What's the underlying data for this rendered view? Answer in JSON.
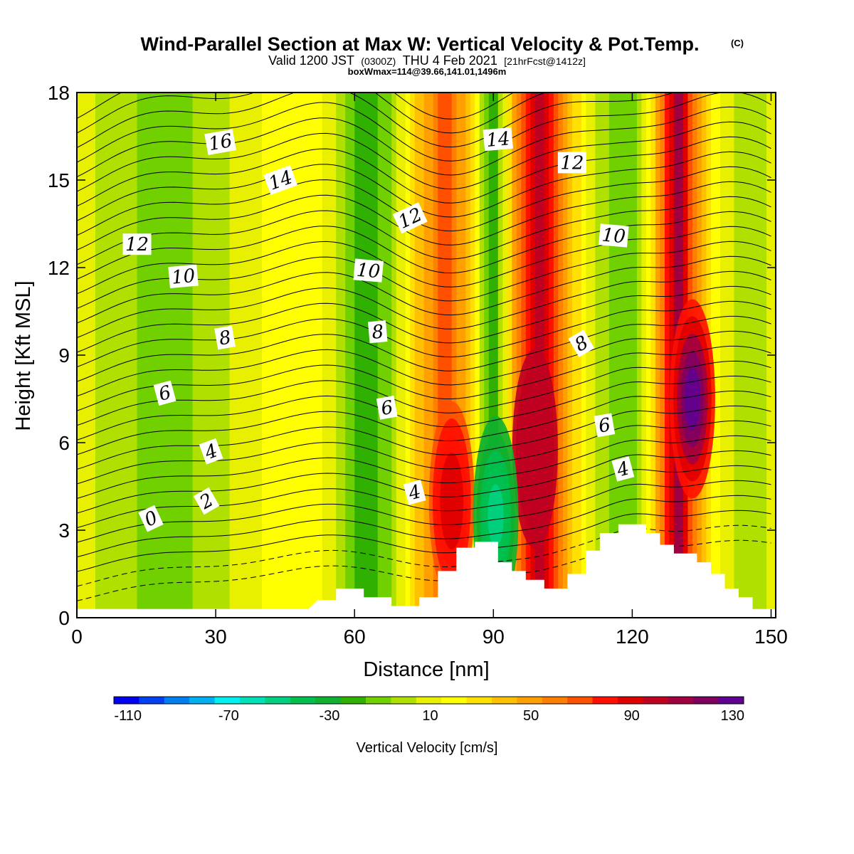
{
  "header": {
    "title": "Wind-Parallel Section at Max W: Vertical Velocity & Pot.Temp.",
    "copyright": "(C)",
    "valid_prefix": "Valid 1200 JST",
    "valid_utc": "(0300Z)",
    "valid_date": "THU 4 Feb 2021",
    "forecast": "[21hrFcst@1412z]",
    "boxwmax": "boxWmax=114@39.66,141.01,1496m"
  },
  "chart_data": {
    "type": "heatmap",
    "xlabel": "Distance [nm]",
    "ylabel": "Height [Kft MSL]",
    "xlim": [
      0,
      151
    ],
    "ylim": [
      0,
      18
    ],
    "x_ticks": [
      "0",
      "30",
      "60",
      "90",
      "120",
      "150"
    ],
    "y_ticks": [
      "0",
      "3",
      "6",
      "9",
      "12",
      "15",
      "18"
    ],
    "x_tick_values": [
      0,
      30,
      60,
      90,
      120,
      150
    ],
    "y_tick_values": [
      0,
      3,
      6,
      9,
      12,
      15,
      18
    ],
    "color_bands": {
      "x": [
        0,
        10,
        20,
        30,
        40,
        50,
        56,
        62,
        68,
        74,
        80,
        86,
        90,
        95,
        100,
        106,
        112,
        118,
        122,
        126,
        130,
        134,
        138,
        144,
        151
      ],
      "values": [
        5,
        -8,
        -15,
        -5,
        10,
        20,
        0,
        -30,
        -10,
        35,
        70,
        20,
        -35,
        50,
        100,
        35,
        0,
        -20,
        -5,
        50,
        110,
        45,
        15,
        -10,
        5
      ]
    },
    "hotspots": [
      {
        "x": 99,
        "y": 5.8,
        "value": 95
      },
      {
        "x": 133,
        "y": 7.5,
        "value": 130
      },
      {
        "x": 81,
        "y": 4.0,
        "value": 85
      },
      {
        "x": 90.5,
        "y": 3.5,
        "value": -55
      }
    ],
    "terrain": [
      [
        0,
        0.3
      ],
      [
        50,
        0.3
      ],
      [
        52,
        0.6
      ],
      [
        56,
        0.6
      ],
      [
        56,
        1.0
      ],
      [
        62,
        1.0
      ],
      [
        62,
        0.7
      ],
      [
        68,
        0.7
      ],
      [
        68,
        0.4
      ],
      [
        74,
        0.4
      ],
      [
        74,
        0.7
      ],
      [
        78,
        0.7
      ],
      [
        78,
        1.6
      ],
      [
        82,
        1.6
      ],
      [
        82,
        2.4
      ],
      [
        86,
        2.4
      ],
      [
        86,
        2.6
      ],
      [
        91,
        2.6
      ],
      [
        91,
        1.9
      ],
      [
        94,
        1.9
      ],
      [
        94,
        1.6
      ],
      [
        97,
        1.6
      ],
      [
        97,
        1.3
      ],
      [
        101,
        1.3
      ],
      [
        101,
        1.0
      ],
      [
        106,
        1.0
      ],
      [
        106,
        1.5
      ],
      [
        110,
        1.5
      ],
      [
        110,
        2.3
      ],
      [
        113,
        2.3
      ],
      [
        113,
        2.9
      ],
      [
        117,
        2.9
      ],
      [
        117,
        3.2
      ],
      [
        123,
        3.2
      ],
      [
        123,
        2.9
      ],
      [
        126,
        2.9
      ],
      [
        126,
        2.5
      ],
      [
        129,
        2.5
      ],
      [
        129,
        2.2
      ],
      [
        134,
        2.2
      ],
      [
        134,
        1.9
      ],
      [
        137,
        1.9
      ],
      [
        137,
        1.5
      ],
      [
        140,
        1.5
      ],
      [
        140,
        1.0
      ],
      [
        143,
        1.0
      ],
      [
        143,
        0.7
      ],
      [
        146,
        0.7
      ],
      [
        146,
        0.3
      ],
      [
        151,
        0.3
      ]
    ],
    "theta_contours": {
      "levels": [
        0,
        2,
        4,
        6,
        8,
        10,
        12,
        14,
        16
      ],
      "labels": [
        {
          "text": "0",
          "x": 16,
          "y": 3.4,
          "rot": -25
        },
        {
          "text": "2",
          "x": 28,
          "y": 4.0,
          "rot": -30
        },
        {
          "text": "4",
          "x": 29,
          "y": 5.7,
          "rot": -20
        },
        {
          "text": "6",
          "x": 19,
          "y": 7.7,
          "rot": -15
        },
        {
          "text": "8",
          "x": 32,
          "y": 9.6,
          "rot": -10
        },
        {
          "text": "10",
          "x": 23,
          "y": 11.7,
          "rot": -5
        },
        {
          "text": "12",
          "x": 13,
          "y": 12.8,
          "rot": 0
        },
        {
          "text": "16",
          "x": 31,
          "y": 16.3,
          "rot": -10
        },
        {
          "text": "14",
          "x": 44,
          "y": 15.0,
          "rot": -20
        },
        {
          "text": "10",
          "x": 63,
          "y": 11.9,
          "rot": 5
        },
        {
          "text": "8",
          "x": 65,
          "y": 9.8,
          "rot": -5
        },
        {
          "text": "6",
          "x": 67,
          "y": 7.2,
          "rot": -10
        },
        {
          "text": "4",
          "x": 73,
          "y": 4.3,
          "rot": -15
        },
        {
          "text": "12",
          "x": 72,
          "y": 13.7,
          "rot": -25
        },
        {
          "text": "14",
          "x": 91,
          "y": 16.4,
          "rot": -5
        },
        {
          "text": "12",
          "x": 107,
          "y": 15.6,
          "rot": 0
        },
        {
          "text": "10",
          "x": 116,
          "y": 13.1,
          "rot": 5
        },
        {
          "text": "8",
          "x": 109,
          "y": 9.4,
          "rot": -30
        },
        {
          "text": "6",
          "x": 114,
          "y": 6.6,
          "rot": -10
        },
        {
          "text": "4",
          "x": 118,
          "y": 5.1,
          "rot": -15
        }
      ]
    },
    "colorbar": {
      "label": "Vertical Velocity [cm/s]",
      "tick_labels": [
        "-110",
        "-70",
        "-30",
        "10",
        "50",
        "90",
        "130"
      ],
      "colors": [
        "#0000f0",
        "#0040f0",
        "#0080f0",
        "#00b0f0",
        "#00f0f0",
        "#00e0b8",
        "#00d080",
        "#00c050",
        "#10b030",
        "#30b000",
        "#70d000",
        "#b0e000",
        "#e8f000",
        "#ffff00",
        "#ffe000",
        "#ffc000",
        "#ffa000",
        "#ff8000",
        "#ff5000",
        "#ff1000",
        "#e00000",
        "#c00020",
        "#a00040",
        "#800060",
        "#600090"
      ]
    }
  }
}
